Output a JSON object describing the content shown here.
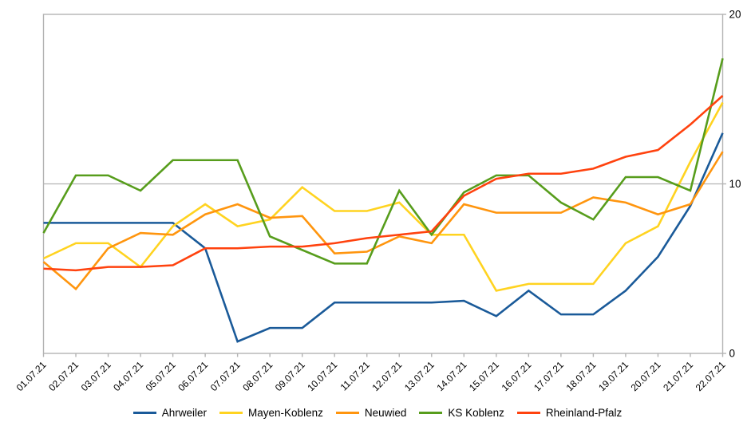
{
  "chart_data": {
    "type": "line",
    "title": "",
    "categories": [
      "01.07.21",
      "02.07.21",
      "03.07.21",
      "04.07.21",
      "05.07.21",
      "06.07.21",
      "07.07.21",
      "08.07.21",
      "09.07.21",
      "10.07.21",
      "11.07.21",
      "12.07.21",
      "13.07.21",
      "14.07.21",
      "15.07.21",
      "16.07.21",
      "17.07.21",
      "18.07.21",
      "19.07.21",
      "20.07.21",
      "21.07.21",
      "22.07.21"
    ],
    "series": [
      {
        "name": "Ahrweiler",
        "color": "#1A5A99",
        "values": [
          7.7,
          7.7,
          7.7,
          7.7,
          7.7,
          6.2,
          0.7,
          1.5,
          1.5,
          3.0,
          3.0,
          3.0,
          3.0,
          3.1,
          2.2,
          3.7,
          2.3,
          2.3,
          3.7,
          5.7,
          8.7,
          13.0
        ]
      },
      {
        "name": "Mayen-Koblenz",
        "color": "#FFD320",
        "values": [
          5.6,
          6.5,
          6.5,
          5.1,
          7.5,
          8.8,
          7.5,
          7.9,
          9.8,
          8.4,
          8.4,
          8.9,
          7.0,
          7.0,
          3.7,
          4.1,
          4.1,
          4.1,
          6.5,
          7.5,
          11.3,
          14.8
        ]
      },
      {
        "name": "Neuwied",
        "color": "#FF950E",
        "values": [
          5.4,
          3.8,
          6.2,
          7.1,
          7.0,
          8.2,
          8.8,
          8.0,
          8.1,
          5.9,
          6.0,
          6.9,
          6.5,
          8.8,
          8.3,
          8.3,
          8.3,
          9.2,
          8.9,
          8.2,
          8.8,
          11.9
        ]
      },
      {
        "name": "KS Koblenz",
        "color": "#579D1C",
        "values": [
          7.1,
          10.5,
          10.5,
          9.6,
          11.4,
          11.4,
          11.4,
          6.9,
          6.1,
          5.3,
          5.3,
          9.6,
          7.0,
          9.5,
          10.5,
          10.5,
          8.9,
          7.9,
          10.4,
          10.4,
          9.6,
          17.4
        ]
      },
      {
        "name": "Rheinland-Pfalz",
        "color": "#FF420E",
        "values": [
          5.0,
          4.9,
          5.1,
          5.1,
          5.2,
          6.2,
          6.2,
          6.3,
          6.3,
          6.5,
          6.8,
          7.0,
          7.2,
          9.3,
          10.3,
          10.6,
          10.6,
          10.9,
          11.6,
          12.0,
          13.5,
          15.2
        ]
      }
    ],
    "xlabel": "",
    "ylabel": "",
    "ylim": [
      0,
      20
    ],
    "yticks": [
      0,
      10,
      20
    ],
    "ytick_labels": [
      "0",
      "10",
      "20"
    ],
    "yaxis_position": "right",
    "xtick_rotation_deg": 45,
    "grid": "horizontal",
    "legend_position": "bottom",
    "axis_color": "#B3B3B3",
    "text_color": "#000000",
    "background_color": "#FFFFFF"
  }
}
